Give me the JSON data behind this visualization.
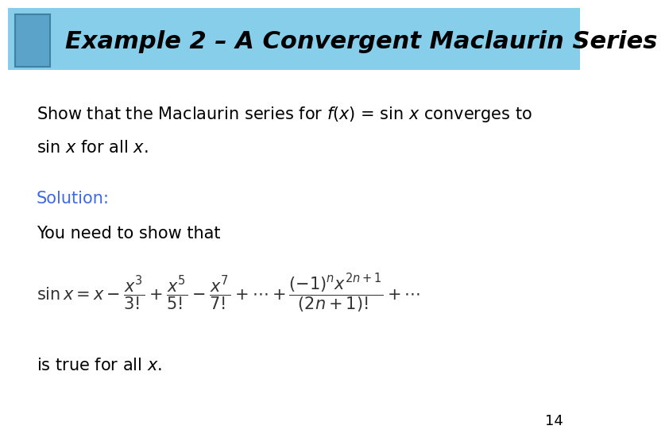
{
  "title": "Example 2 – A Convergent Maclaurin Series",
  "title_bg_color": "#87CEEB",
  "title_text_color": "#000000",
  "title_fontsize": 22,
  "body_bg_color": "#FFFFFF",
  "solution_label": "Solution:",
  "solution_color": "#4169E1",
  "you_need": "You need to show that",
  "page_number": "14",
  "body_text_fontsize": 15,
  "formula_fontsize": 15,
  "darker_sq_color": "#5BA3C9",
  "darker_sq_edge": "#4080A0"
}
